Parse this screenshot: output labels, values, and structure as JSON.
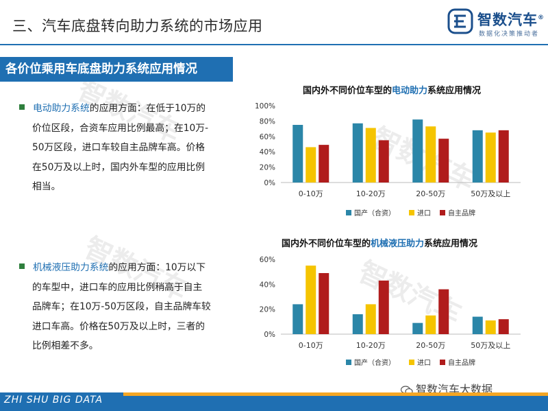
{
  "header": {
    "title": "三、汽车底盘转向助力系统的市场应用",
    "logo_name": "智数汽车",
    "logo_reg": "®",
    "logo_slogan": "数据化决策推动者"
  },
  "section": {
    "title": "各价位乘用车底盘助力系统应用情况"
  },
  "bullets": [
    {
      "highlight": "电动助力系统",
      "first_line": "的应用方面：在低于10万的",
      "lines": [
        "价位区段，合资车应用比例最高；在10万-",
        "50万区段，进口车较自主品牌车高。价格",
        "在50万及以上时，国内外车型的应用比例",
        "相当。"
      ]
    },
    {
      "highlight": "机械液压助力系统",
      "first_line": "的应用方面：10万以下",
      "lines": [
        "的车型中，进口车的应用比例稍高于自主",
        "品牌车；在10万-50万区段，自主品牌车较",
        "进口车高。价格在50万及以上时，三者的",
        "比例相差不多。"
      ]
    }
  ],
  "charts": [
    {
      "title_pre": "国内外不同价位车型的",
      "title_hl": "电动助力",
      "title_post": "系统应用情况"
    },
    {
      "title_pre": "国内外不同价位车型的",
      "title_hl": "机械液压助力",
      "title_post": "系统应用情况"
    }
  ],
  "chart_data": [
    {
      "type": "bar",
      "title": "国内外不同价位车型的电动助力系统应用情况",
      "categories": [
        "0-10万",
        "10-20万",
        "20-50万",
        "50万及以上"
      ],
      "series": [
        {
          "name": "国产（合资）",
          "values": [
            75,
            77,
            82,
            68
          ],
          "color": "#2b86a8"
        },
        {
          "name": "进口",
          "values": [
            46,
            71,
            73,
            65
          ],
          "color": "#f5c400"
        },
        {
          "name": "自主品牌",
          "values": [
            49,
            55,
            57,
            68
          ],
          "color": "#b01c1c"
        }
      ],
      "ylim": [
        0,
        100
      ],
      "yticks": [
        "0%",
        "20%",
        "40%",
        "60%",
        "80%",
        "100%"
      ],
      "ytick_values": [
        0,
        20,
        40,
        60,
        80,
        100
      ],
      "legend": "bottom",
      "grid": false
    },
    {
      "type": "bar",
      "title": "国内外不同价位车型的机械液压助力系统应用情况",
      "categories": [
        "0-10万",
        "10-20万",
        "20-50万",
        "50万及以上"
      ],
      "series": [
        {
          "name": "国产（合资）",
          "values": [
            24,
            16,
            9,
            14
          ],
          "color": "#2b86a8"
        },
        {
          "name": "进口",
          "values": [
            55,
            24,
            15,
            11
          ],
          "color": "#f5c400"
        },
        {
          "name": "自主品牌",
          "values": [
            49,
            43,
            36,
            12
          ],
          "color": "#b01c1c"
        }
      ],
      "ylim": [
        0,
        60
      ],
      "yticks": [
        "0%",
        "20%",
        "40%",
        "60%"
      ],
      "ytick_values": [
        0,
        20,
        40,
        60
      ],
      "legend": "bottom",
      "grid": false
    }
  ],
  "footer": {
    "text": "ZHI SHU BIG DATA",
    "wechat": "智数汽车大数据"
  },
  "watermark": {
    "text": "智数汽车"
  }
}
